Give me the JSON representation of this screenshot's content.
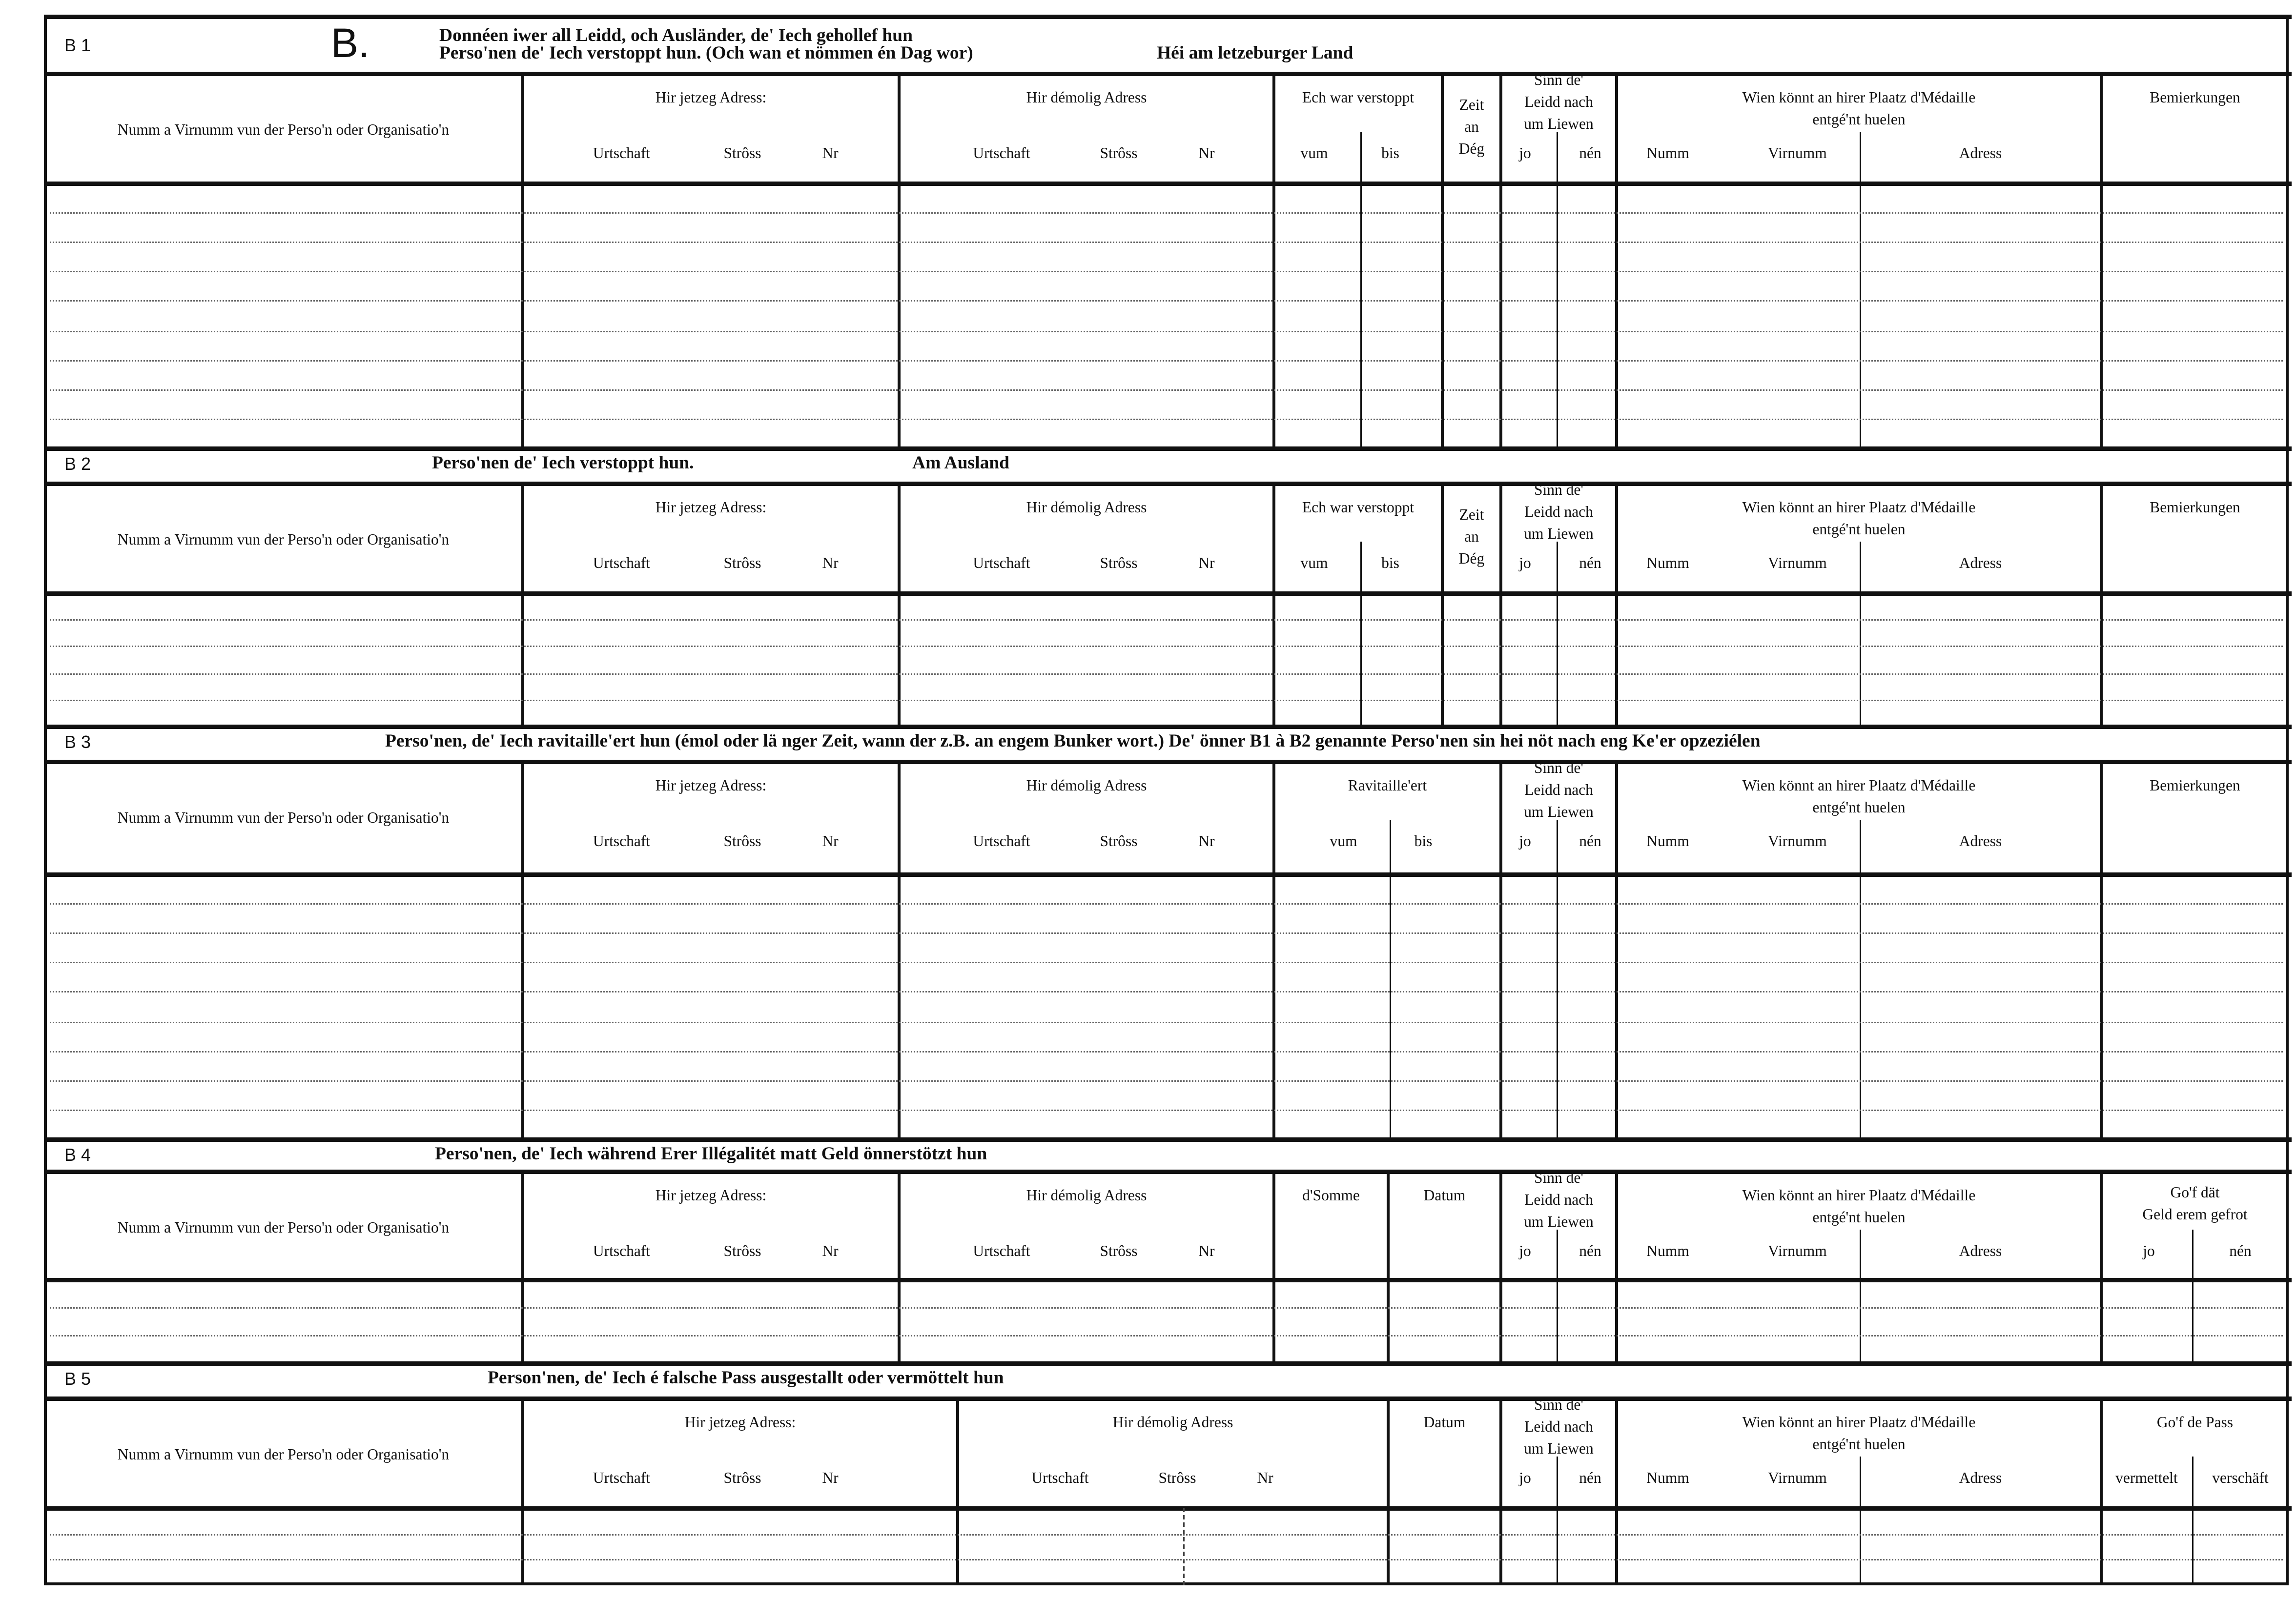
{
  "form": {
    "big_letter": "B.",
    "sections": [
      {
        "id": "B 1",
        "title_lines": [
          "Donnéen iwer all Leidd, och Ausländer, de' Iech gehollef hun",
          "Perso'nen de' Iech verstoppt hun. (Och wan et nömmen én Dag wor)"
        ],
        "title_extra": "Héi am letzeburger Land",
        "headers": {
          "name": "Numm a Virnumm vun der Perso'n oder Organisatio'n",
          "current_address": "Hir jetzeg Adress:",
          "former_address": "Hir démolig Adress",
          "town": "Urtschaft",
          "street": "Strôss",
          "number": "Nr",
          "hidden": "Ech war verstoppt",
          "from": "vum",
          "to": "bis",
          "days": "Zeit\nan\nDég",
          "alive": "Sinn  de'\nLeidd  nach\num Liewen",
          "yes": "jo",
          "no": "nén",
          "medal": "Wien  könnt  an  hirer  Plaatz  d'Médaille\nentgé'nt huelen",
          "surname": "Numm",
          "firstname": "Virnumm",
          "address": "Adress",
          "remarks": "Bemierkungen"
        }
      },
      {
        "id": "B 2",
        "title_lines": [
          "Perso'nen de' Iech verstoppt hun."
        ],
        "title_extra": "Am  Ausland",
        "headers": {
          "name": "Numm a Virnumm vun der Perso'n oder Organisatio'n",
          "current_address": "Hir jetzeg Adress:",
          "former_address": "Hir démolig Adress",
          "town": "Urtschaft",
          "street": "Strôss",
          "number": "Nr",
          "hidden": "Ech war verstoppt",
          "from": "vum",
          "to": "bis",
          "days": "Zeit\nan\nDég",
          "alive": "Sinn  de'\nLeidd  nach\num Liewen",
          "yes": "jo",
          "no": "nén",
          "medal": "Wien  könnt  an  hirer  Plaatz  d'Médaille\nentgé'nt huelen",
          "surname": "Numm",
          "firstname": "Virnumm",
          "address": "Adress",
          "remarks": "Bemierkungen"
        }
      },
      {
        "id": "B 3",
        "title_lines": [
          "Perso'nen, de' Iech ravitaille'ert hun (émol oder lä nger Zeit, wann der z.B. an engem Bunker wort.)  De' önner B1 à B2 genannte Perso'nen sin hei nöt nach eng Ke'er opzeziélen"
        ],
        "title_extra": "",
        "headers": {
          "name": "Numm a Virnumm vun der Perso'n oder Organisatio'n",
          "current_address": "Hir jetzeg Adress:",
          "former_address": "Hir démolig Adress",
          "town": "Urtschaft",
          "street": "Strôss",
          "number": "Nr",
          "supplied": "Ravitaille'ert",
          "from": "vum",
          "to": "bis",
          "alive": "Sinn  de'\nLeidd  nach\num Liewen",
          "yes": "jo",
          "no": "nén",
          "medal": "Wien  könnt  an  hirer  Plaatz  d'Médaille\nentgé'nt huelen",
          "surname": "Numm",
          "firstname": "Virnumm",
          "address": "Adress",
          "remarks": "Bemierkungen"
        }
      },
      {
        "id": "B 4",
        "title_lines": [
          "Perso'nen, de' Iech während Erer Illégalitét matt  Geld önnerstötzt hun"
        ],
        "title_extra": "",
        "headers": {
          "name": "Numm a Virnumm vun der Perso'n oder Organisatio'n",
          "current_address": "Hir jetzeg Adress:",
          "former_address": "Hir démolig Adress",
          "town": "Urtschaft",
          "street": "Strôss",
          "number": "Nr",
          "sum": "d'Somme",
          "date": "Datum",
          "alive": "Sinn  de'\nLeidd  nach\num Liewen",
          "yes": "jo",
          "no": "nén",
          "medal": "Wien  könnt  an  hirer  Plaatz  d'Médaille\nentgé'nt huelen",
          "surname": "Numm",
          "firstname": "Virnumm",
          "address": "Adress",
          "money_requested": "Go'f  dät\nGeld  erem  gefrot",
          "money_yes": "jo",
          "money_no": "nén"
        }
      },
      {
        "id": "B 5",
        "title_lines": [
          "Person'nen, de' Iech é falsche Pass ausgestallt oder  vermöttelt hun"
        ],
        "title_extra": "",
        "headers": {
          "name": "Numm a Virnumm vun der Perso'n oder Organisatio'n",
          "current_address": "Hir jetzeg Adress:",
          "former_address": "Hir démolig Adress",
          "town": "Urtschaft",
          "street": "Strôss",
          "number": "Nr",
          "date": "Datum",
          "alive": "Sinn  de'\nLeidd  nach\num Liewen",
          "yes": "jo",
          "no": "nén",
          "medal": "Wien  könnt  an  hirer  Plaatz  d'Médaille\nentgé'nt huelen",
          "surname": "Numm",
          "firstname": "Virnumm",
          "address": "Adress",
          "passport": "Go'f de Pass",
          "mediated": "vermettelt",
          "provided": "verschäft"
        }
      }
    ]
  }
}
